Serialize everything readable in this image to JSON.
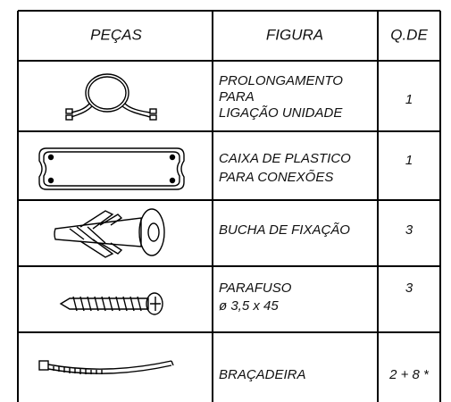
{
  "table": {
    "header": [
      "PEÇAS",
      "FIGURA",
      "Q.DE"
    ],
    "rows": [
      {
        "description": [
          "PROLONGAMENTO",
          "PARA",
          "LIGAÇÃO UNIDADE"
        ],
        "quantity": "1"
      },
      {
        "description": [
          "CAIXA DE PLASTICO",
          "PARA CONEXÕES"
        ],
        "quantity": "1"
      },
      {
        "description": [
          "BUCHA DE FIXAÇÃO"
        ],
        "quantity": "3"
      },
      {
        "description": [
          "PARAFUSO",
          "ø 3,5 x 45"
        ],
        "quantity": "3"
      },
      {
        "description": [
          "BRAÇADEIRA"
        ],
        "quantity": "2 + 8 *"
      }
    ]
  }
}
